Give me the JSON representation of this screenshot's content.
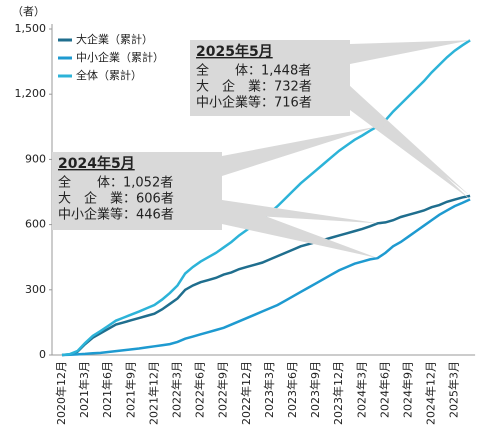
{
  "chart_data": {
    "type": "line",
    "y_unit": "（者）",
    "categories": [
      "2020年12月",
      null,
      null,
      "2021年3月",
      null,
      null,
      "2021年6月",
      null,
      null,
      "2021年9月",
      null,
      null,
      "2021年12月",
      null,
      null,
      "2022年3月",
      null,
      null,
      "2022年6月",
      null,
      null,
      "2022年9月",
      null,
      null,
      "2022年12月",
      null,
      null,
      "2023年3月",
      null,
      null,
      "2023年6月",
      null,
      null,
      "2023年9月",
      null,
      null,
      "2023年12月",
      null,
      null,
      "2024年3月",
      null,
      null,
      "2024年6月",
      null,
      null,
      "2024年9月",
      null,
      null,
      "2024年12月",
      null,
      null,
      "2025年3月",
      null,
      null
    ],
    "series": [
      {
        "name": "大企業（累計）",
        "color": "#1f6e8e",
        "values": [
          0,
          3,
          15,
          50,
          80,
          100,
          120,
          140,
          150,
          160,
          170,
          180,
          190,
          210,
          235,
          260,
          300,
          320,
          335,
          345,
          355,
          370,
          380,
          395,
          405,
          415,
          425,
          440,
          455,
          470,
          485,
          500,
          510,
          520,
          530,
          540,
          550,
          560,
          570,
          580,
          592,
          606,
          610,
          620,
          635,
          645,
          655,
          665,
          680,
          690,
          705,
          715,
          725,
          732
        ]
      },
      {
        "name": "中小企業（累計）",
        "color": "#1e9ad0",
        "values": [
          0,
          1,
          3,
          5,
          8,
          10,
          14,
          18,
          22,
          26,
          30,
          35,
          40,
          45,
          50,
          60,
          75,
          85,
          95,
          105,
          115,
          125,
          140,
          155,
          170,
          185,
          200,
          215,
          230,
          250,
          270,
          290,
          310,
          330,
          350,
          370,
          390,
          405,
          420,
          430,
          440,
          446,
          470,
          500,
          520,
          545,
          570,
          595,
          620,
          645,
          665,
          685,
          700,
          716
        ]
      },
      {
        "name": "全体（累計）",
        "color": "#2cb3d8",
        "values": [
          0,
          4,
          18,
          55,
          88,
          110,
          134,
          158,
          172,
          186,
          200,
          215,
          230,
          255,
          285,
          320,
          375,
          405,
          430,
          450,
          470,
          495,
          520,
          550,
          575,
          600,
          625,
          655,
          685,
          720,
          755,
          790,
          820,
          850,
          880,
          910,
          940,
          965,
          990,
          1010,
          1032,
          1052,
          1080,
          1120,
          1155,
          1190,
          1225,
          1260,
          1300,
          1335,
          1370,
          1400,
          1425,
          1448
        ]
      }
    ],
    "ylim": [
      0,
      1500
    ],
    "yticks": [
      0,
      300,
      600,
      900,
      {
        "value": 1200,
        "label": "1,200"
      },
      {
        "value": 1500,
        "label": "1,500"
      }
    ],
    "legend": "upper left",
    "annotations": [
      {
        "title": "2025年5月",
        "lines": [
          "全　　体：1,448者",
          "大　企　業：732者",
          "中小企業等：716者"
        ]
      },
      {
        "title": "2024年5月",
        "lines": [
          "全　　体：1,052者",
          "大　企　業：606者",
          "中小企業等：446者"
        ]
      }
    ]
  }
}
